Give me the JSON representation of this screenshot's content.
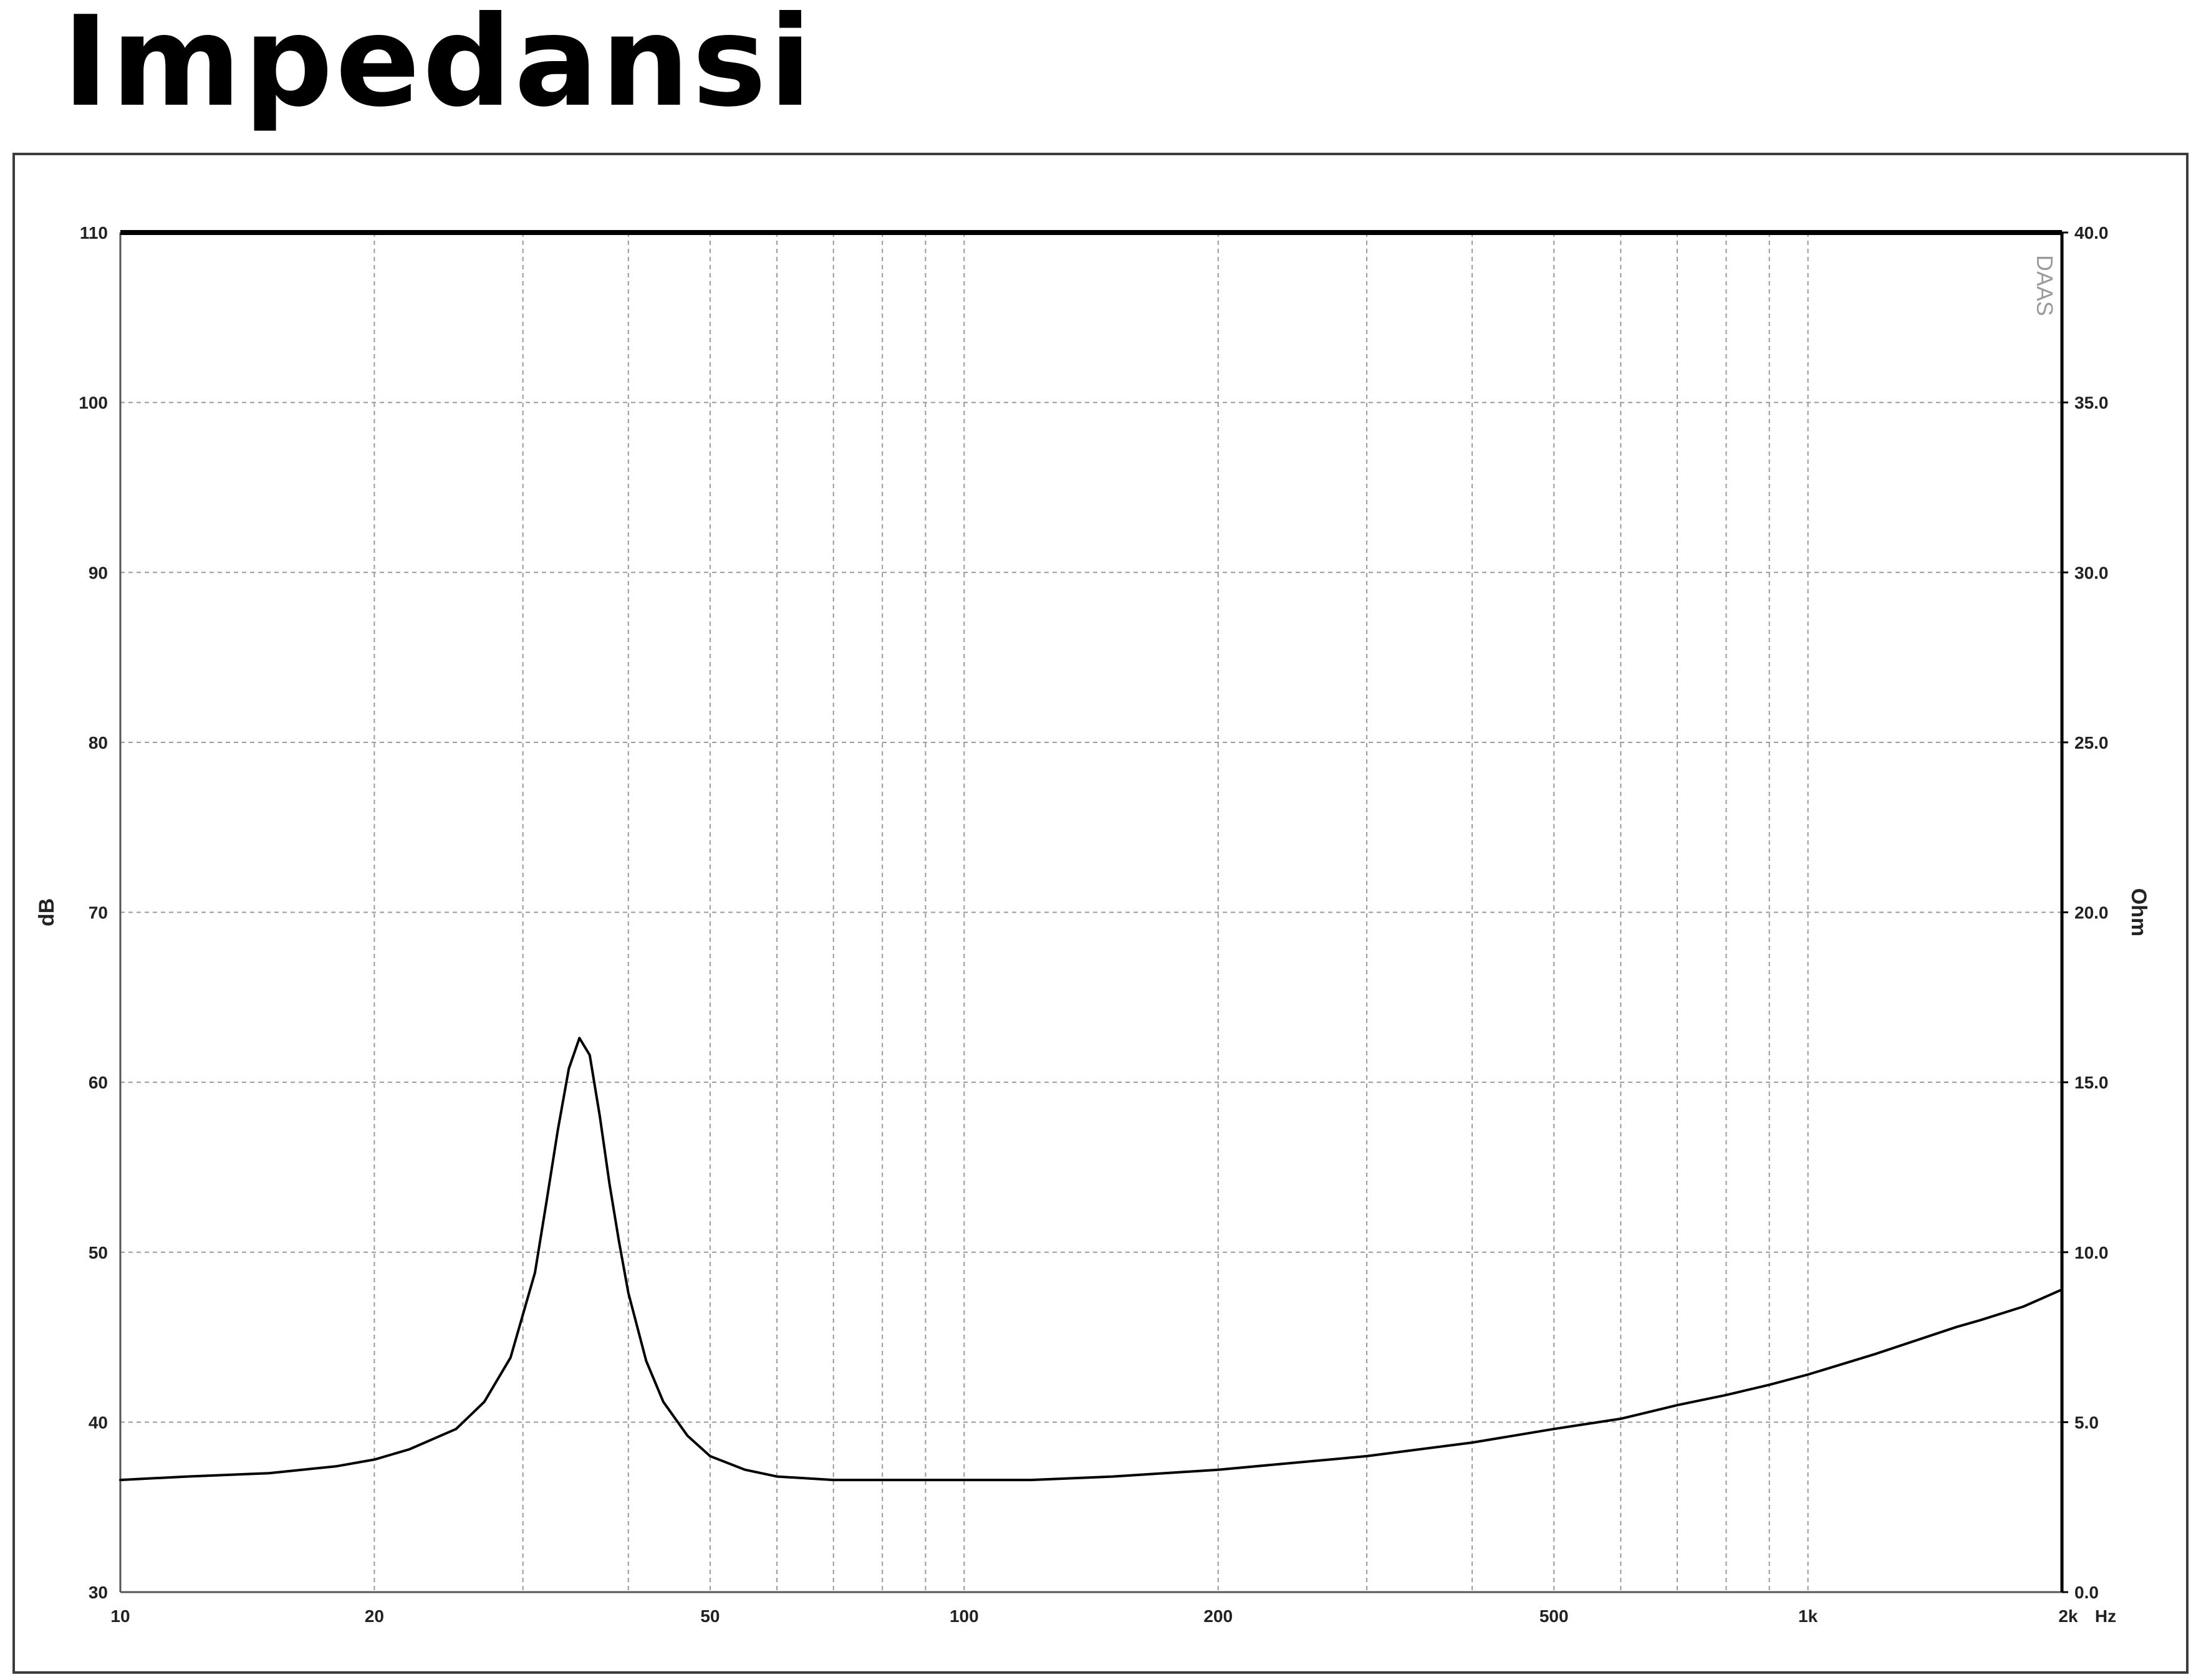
{
  "title": "Impedansi",
  "chart_data": {
    "type": "line",
    "x_scale": "log",
    "x_unit": "Hz",
    "xlim": [
      10,
      2000
    ],
    "x_ticks": [
      {
        "value": 10,
        "label": "10"
      },
      {
        "value": 20,
        "label": "20"
      },
      {
        "value": 50,
        "label": "50"
      },
      {
        "value": 100,
        "label": "100"
      },
      {
        "value": 200,
        "label": "200"
      },
      {
        "value": 500,
        "label": "500"
      },
      {
        "value": 1000,
        "label": "1k"
      },
      {
        "value": 2000,
        "label": "2k"
      }
    ],
    "ylabel_left": "dB",
    "ylim_left": [
      30,
      110
    ],
    "y_ticks_left": [
      "30",
      "40",
      "50",
      "60",
      "70",
      "80",
      "90",
      "100",
      "110"
    ],
    "ylabel_right": "Ohm",
    "ylim_right": [
      0,
      40
    ],
    "y_ticks_right": [
      "0.0",
      "5.0",
      "10.0",
      "15.0",
      "20.0",
      "25.0",
      "30.0",
      "35.0",
      "40.0"
    ],
    "grid": true,
    "watermark": "DAAS",
    "series": [
      {
        "axis": "right",
        "color": "#000000",
        "x": [
          10,
          12,
          15,
          18,
          20,
          22,
          25,
          27,
          29,
          31,
          32,
          33,
          34,
          35,
          36,
          37,
          38,
          39,
          40,
          42,
          44,
          47,
          50,
          55,
          60,
          70,
          80,
          90,
          100,
          120,
          150,
          200,
          300,
          400,
          500,
          600,
          700,
          800,
          900,
          1000,
          1200,
          1500,
          1600,
          1800,
          2000
        ],
        "y": [
          3.3,
          3.4,
          3.5,
          3.7,
          3.9,
          4.2,
          4.8,
          5.6,
          6.9,
          9.4,
          11.5,
          13.6,
          15.4,
          16.3,
          15.8,
          14.0,
          12.0,
          10.3,
          8.8,
          6.8,
          5.6,
          4.6,
          4.0,
          3.6,
          3.4,
          3.3,
          3.3,
          3.3,
          3.3,
          3.3,
          3.4,
          3.6,
          4.0,
          4.4,
          4.8,
          5.1,
          5.5,
          5.8,
          6.1,
          6.4,
          7.0,
          7.8,
          8.0,
          8.4,
          8.9
        ]
      }
    ]
  }
}
